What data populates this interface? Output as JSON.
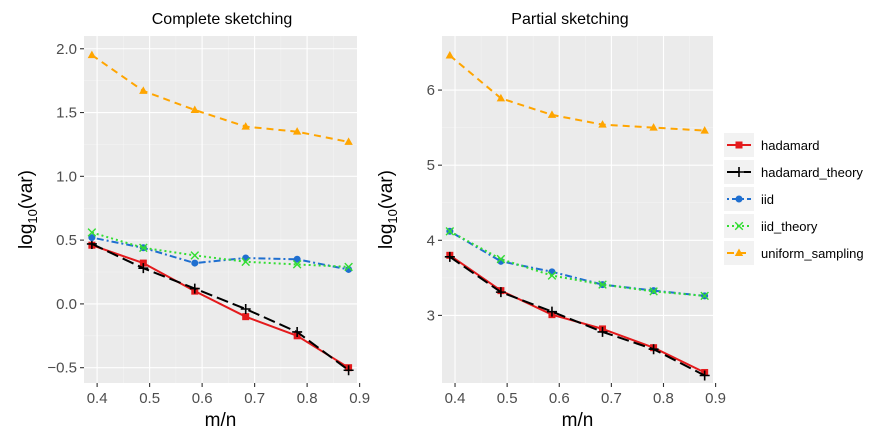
{
  "chart_data": [
    {
      "type": "line",
      "title": "Complete sketching",
      "xlabel": "m/n",
      "ylabel_base": "log",
      "ylabel_sub": "10",
      "ylabel_rest": "(var)",
      "xlim": [
        0.375,
        0.895
      ],
      "ylim": [
        -0.62,
        2.1
      ],
      "xticks": [
        0.4,
        0.5,
        0.6,
        0.7,
        0.8,
        0.9
      ],
      "xtick_labels": [
        "0.4",
        "0.5",
        "0.6",
        "0.7",
        "0.8",
        "0.9"
      ],
      "yticks": [
        -0.5,
        0.0,
        0.5,
        1.0,
        1.5,
        2.0
      ],
      "ytick_labels": [
        "−0.5",
        "0.0",
        "0.5",
        "1.0",
        "1.5",
        "2.0"
      ],
      "x": [
        0.39,
        0.488,
        0.586,
        0.683,
        0.781,
        0.879
      ],
      "series": [
        {
          "name": "hadamard",
          "values": [
            0.46,
            0.32,
            0.1,
            -0.1,
            -0.25,
            -0.5
          ]
        },
        {
          "name": "hadamard_theory",
          "values": [
            0.47,
            0.28,
            0.12,
            -0.04,
            -0.22,
            -0.52
          ]
        },
        {
          "name": "iid",
          "values": [
            0.52,
            0.44,
            0.32,
            0.36,
            0.35,
            0.27
          ]
        },
        {
          "name": "iid_theory",
          "values": [
            0.56,
            0.44,
            0.38,
            0.33,
            0.31,
            0.29
          ]
        },
        {
          "name": "uniform_sampling",
          "values": [
            1.95,
            1.67,
            1.52,
            1.39,
            1.35,
            1.27
          ]
        }
      ]
    },
    {
      "type": "line",
      "title": "Partial sketching",
      "xlabel": "m/n",
      "ylabel_base": "log",
      "ylabel_sub": "10",
      "ylabel_rest": "(var)",
      "xlim": [
        0.375,
        0.895
      ],
      "ylim": [
        2.1,
        6.72
      ],
      "xticks": [
        0.4,
        0.5,
        0.6,
        0.7,
        0.8,
        0.9
      ],
      "xtick_labels": [
        "0.4",
        "0.5",
        "0.6",
        "0.7",
        "0.8",
        "0.9"
      ],
      "yticks": [
        3,
        4,
        5,
        6
      ],
      "ytick_labels": [
        "3",
        "4",
        "5",
        "6"
      ],
      "x": [
        0.39,
        0.488,
        0.586,
        0.683,
        0.781,
        0.879
      ],
      "series": [
        {
          "name": "hadamard",
          "values": [
            3.8,
            3.33,
            3.01,
            2.82,
            2.57,
            2.24
          ]
        },
        {
          "name": "hadamard_theory",
          "values": [
            3.78,
            3.31,
            3.05,
            2.78,
            2.55,
            2.2
          ]
        },
        {
          "name": "iid",
          "values": [
            4.12,
            3.72,
            3.58,
            3.41,
            3.33,
            3.26
          ]
        },
        {
          "name": "iid_theory",
          "values": [
            4.12,
            3.75,
            3.53,
            3.41,
            3.32,
            3.26
          ]
        },
        {
          "name": "uniform_sampling",
          "values": [
            6.46,
            5.89,
            5.67,
            5.54,
            5.5,
            5.46
          ]
        }
      ]
    }
  ],
  "legend": {
    "placement": "right",
    "items": [
      {
        "label": "hadamard",
        "color": "#e41a1c",
        "marker": "square",
        "dash": "solid"
      },
      {
        "label": "hadamard_theory",
        "color": "#000000",
        "marker": "plus",
        "dash": "longdash"
      },
      {
        "label": "iid",
        "color": "#1f6fd0",
        "marker": "circle",
        "dash": "dotdash"
      },
      {
        "label": "iid_theory",
        "color": "#33dd33",
        "marker": "cross",
        "dash": "dotted"
      },
      {
        "label": "uniform_sampling",
        "color": "#ffa500",
        "marker": "triangle",
        "dash": "dashed"
      }
    ]
  }
}
